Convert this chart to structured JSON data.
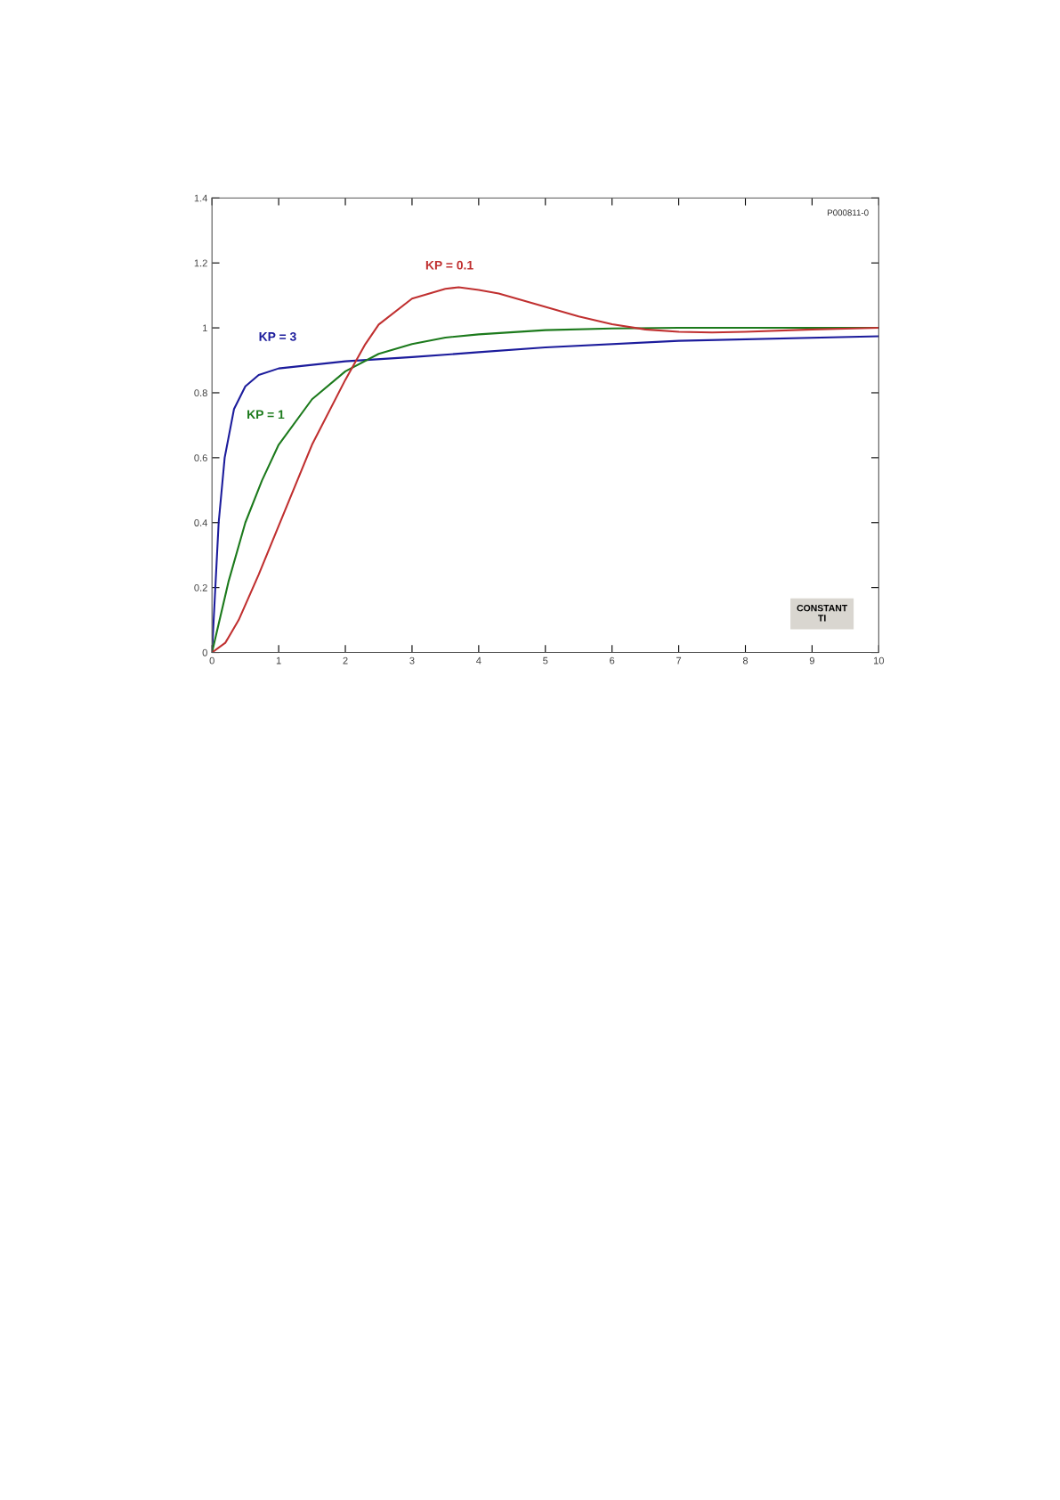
{
  "chart_data": {
    "type": "line",
    "xlim": [
      0,
      10
    ],
    "xticks": [
      0,
      1,
      2,
      3,
      4,
      5,
      6,
      7,
      8,
      9,
      10
    ],
    "ylim": [
      0,
      1.4
    ],
    "yticks": [
      0,
      0.2,
      0.4,
      0.6,
      0.8,
      1,
      1.2,
      1.4
    ],
    "grid": false,
    "legend": false,
    "marker": "none",
    "line_style": "solid",
    "series": [
      {
        "name": "KP = 3",
        "color": "#1c1c9c",
        "x": [
          0,
          0.1,
          0.19,
          0.33,
          0.5,
          0.7,
          1,
          2,
          3,
          4,
          5,
          7,
          10
        ],
        "values": [
          0,
          0.4,
          0.6,
          0.75,
          0.82,
          0.855,
          0.875,
          0.897,
          0.91,
          0.925,
          0.94,
          0.96,
          0.974
        ]
      },
      {
        "name": "KP = 1",
        "color": "#1c7a1c",
        "x": [
          0,
          0.25,
          0.5,
          0.75,
          1,
          1.5,
          2,
          2.5,
          3,
          3.5,
          4,
          5,
          6,
          7,
          10
        ],
        "values": [
          0,
          0.22,
          0.4,
          0.53,
          0.64,
          0.78,
          0.866,
          0.92,
          0.95,
          0.97,
          0.98,
          0.993,
          0.998,
          1,
          1
        ]
      },
      {
        "name": "KP = 0.1",
        "color": "#c03030",
        "x": [
          0,
          0.2,
          0.4,
          0.7,
          1,
          1.5,
          2,
          2.3,
          2.5,
          3,
          3.5,
          3.7,
          4,
          4.3,
          5,
          5.5,
          6,
          6.5,
          7,
          7.5,
          8,
          9,
          10
        ],
        "values": [
          0,
          0.03,
          0.1,
          0.24,
          0.39,
          0.64,
          0.84,
          0.95,
          1.01,
          1.09,
          1.12,
          1.125,
          1.117,
          1.106,
          1.065,
          1.035,
          1.011,
          0.995,
          0.988,
          0.986,
          0.988,
          0.995,
          1
        ]
      }
    ],
    "annotations": [
      "P000811-0",
      "CONSTANT\nTI"
    ]
  }
}
